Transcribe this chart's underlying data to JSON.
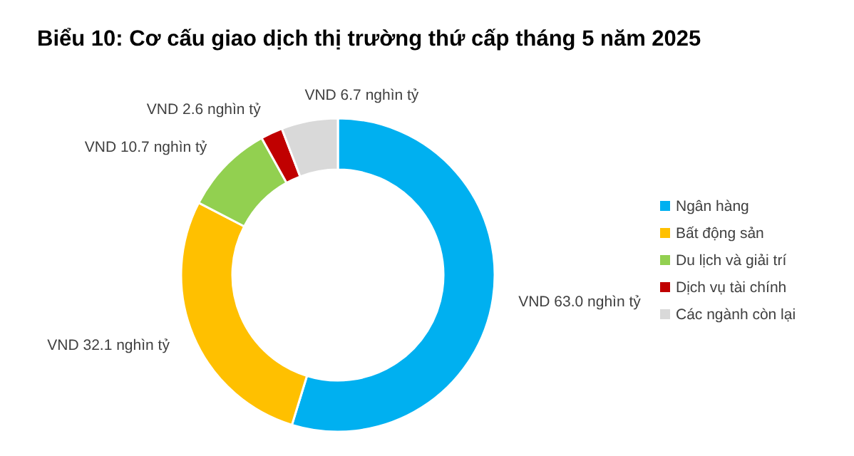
{
  "chart_data": {
    "type": "donut",
    "title": "Biểu 10: Cơ cấu giao dịch thị trường thứ cấp tháng 5 năm 2025",
    "categories": [
      "Ngân hàng",
      "Bất động sản",
      "Du lịch và giải trí",
      "Dịch vụ tài chính",
      "Các ngành còn lại"
    ],
    "values": [
      63.0,
      32.1,
      10.7,
      2.6,
      6.7
    ],
    "colors": [
      "#00b0f0",
      "#ffc000",
      "#92d050",
      "#c00000",
      "#d9d9d9"
    ],
    "value_labels": [
      "VND 63.0 nghìn tỷ",
      "VND 32.1 nghìn tỷ",
      "VND 10.7 nghìn tỷ",
      "VND 2.6 nghìn tỷ",
      "VND 6.7 nghìn tỷ"
    ],
    "legend": "right"
  }
}
